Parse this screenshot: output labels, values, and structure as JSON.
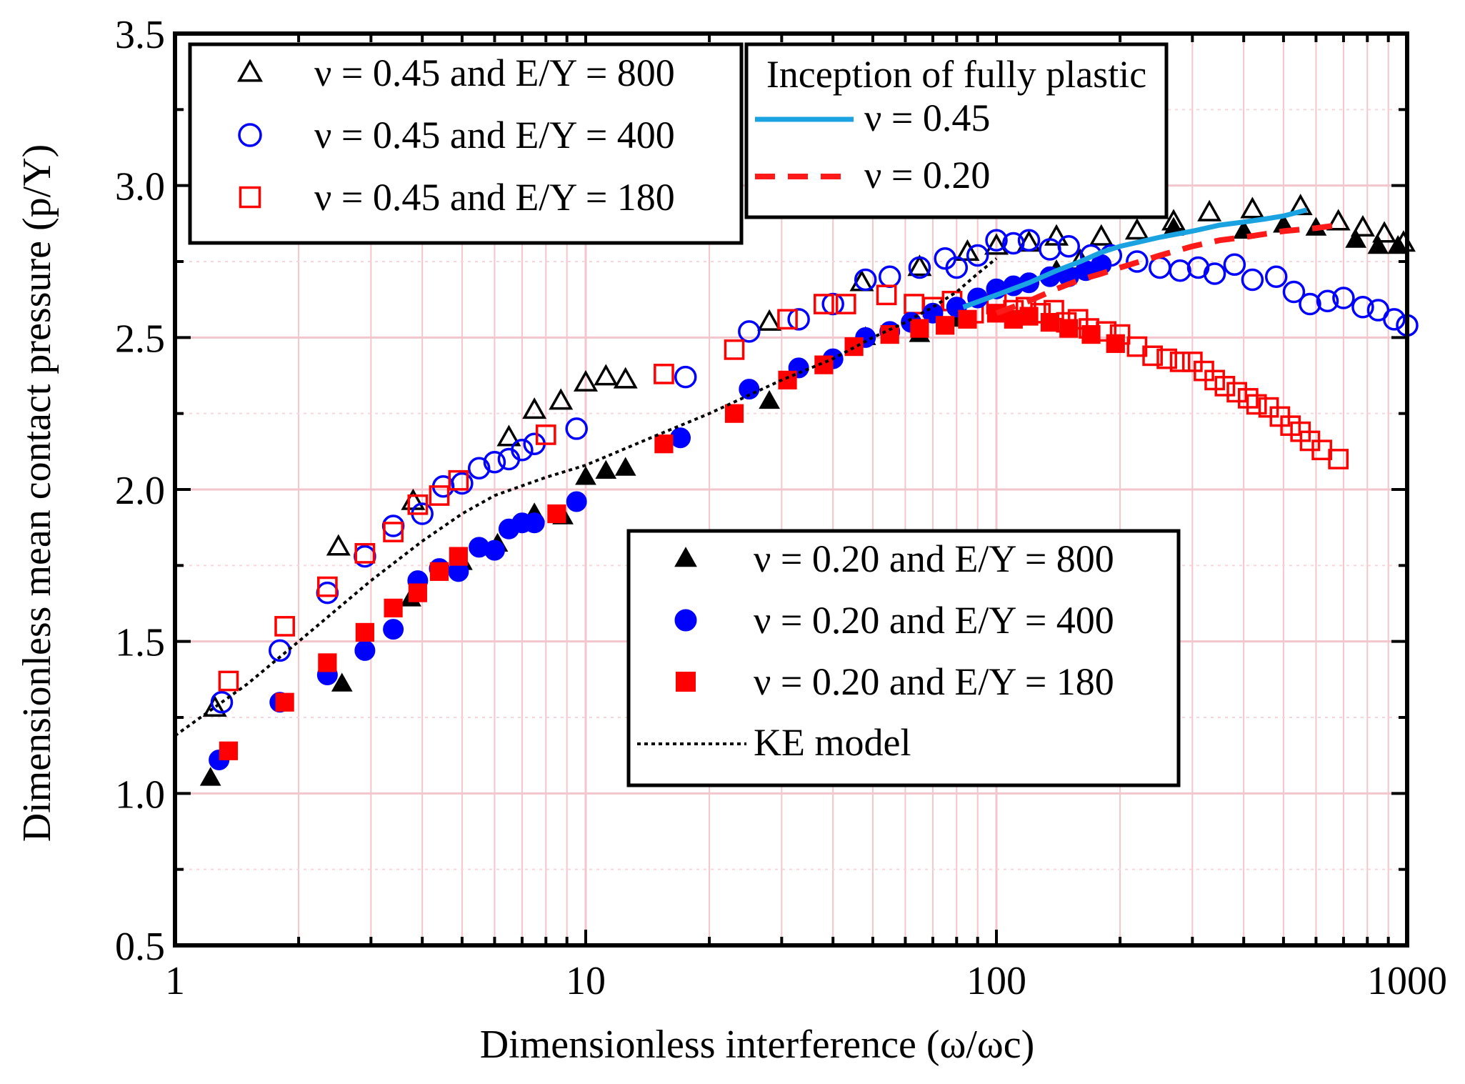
{
  "chart_data": {
    "type": "scatter",
    "xlabel": "Dimensionless interference (ω/ωc)",
    "ylabel": "Dimensionless mean contact pressure (p/Y)",
    "xscale": "log",
    "xlim": [
      1,
      1000
    ],
    "ylim": [
      0.5,
      3.5
    ],
    "xticks": [
      "1",
      "10",
      "100",
      "1000"
    ],
    "yticks": [
      "0.5",
      "1.0",
      "1.5",
      "2.0",
      "2.5",
      "3.0",
      "3.5"
    ],
    "grid": true,
    "series": [
      {
        "name": "ν = 0.45 and E/Y = 800",
        "marker": "triangle-open",
        "color": "#000000",
        "x": [
          1.25,
          2.5,
          3.8,
          6.5,
          7.5,
          8.7,
          10,
          11.2,
          12.5,
          28,
          47,
          65,
          85,
          100,
          120,
          140,
          160,
          180,
          220,
          270,
          330,
          420,
          550,
          680,
          780,
          880,
          980
        ],
        "y": [
          1.28,
          1.81,
          1.96,
          2.17,
          2.26,
          2.29,
          2.35,
          2.37,
          2.36,
          2.55,
          2.68,
          2.73,
          2.78,
          2.8,
          2.81,
          2.83,
          2.75,
          2.83,
          2.85,
          2.88,
          2.91,
          2.92,
          2.93,
          2.88,
          2.86,
          2.84,
          2.81
        ]
      },
      {
        "name": "ν = 0.45 and E/Y = 400",
        "marker": "circle-open",
        "color": "#0000ff",
        "x": [
          1.3,
          1.8,
          2.35,
          2.9,
          3.4,
          4.0,
          4.5,
          5.0,
          5.5,
          6.0,
          6.5,
          7.0,
          7.5,
          9.5,
          17.5,
          25,
          33,
          40,
          48,
          55,
          65,
          75,
          80,
          90,
          100,
          110,
          120,
          135,
          150,
          170,
          190,
          220,
          250,
          280,
          310,
          340,
          380,
          420,
          480,
          530,
          580,
          640,
          700,
          780,
          850,
          930,
          1000
        ],
        "y": [
          1.3,
          1.47,
          1.66,
          1.78,
          1.88,
          1.92,
          2.01,
          2.02,
          2.07,
          2.09,
          2.1,
          2.13,
          2.15,
          2.2,
          2.37,
          2.52,
          2.56,
          2.61,
          2.69,
          2.7,
          2.73,
          2.76,
          2.73,
          2.77,
          2.82,
          2.81,
          2.82,
          2.79,
          2.8,
          2.77,
          2.77,
          2.75,
          2.73,
          2.72,
          2.73,
          2.71,
          2.74,
          2.69,
          2.7,
          2.65,
          2.61,
          2.62,
          2.63,
          2.6,
          2.59,
          2.56,
          2.54
        ]
      },
      {
        "name": "ν = 0.45 and E/Y = 180",
        "marker": "square-open",
        "color": "#ff0000",
        "x": [
          1.35,
          1.85,
          2.35,
          2.9,
          3.4,
          3.9,
          4.4,
          4.9,
          8.0,
          15.5,
          23,
          31,
          38,
          43,
          54,
          63,
          70,
          78,
          88,
          100,
          110,
          118,
          128,
          138,
          148,
          158,
          168,
          185,
          200,
          220,
          240,
          260,
          280,
          300,
          320,
          340,
          360,
          385,
          410,
          430,
          460,
          490,
          520,
          550,
          580,
          620,
          680
        ],
        "y": [
          1.37,
          1.55,
          1.68,
          1.79,
          1.86,
          1.95,
          1.98,
          2.03,
          2.18,
          2.38,
          2.46,
          2.56,
          2.61,
          2.61,
          2.64,
          2.61,
          2.6,
          2.62,
          2.58,
          2.61,
          2.59,
          2.6,
          2.58,
          2.59,
          2.55,
          2.56,
          2.53,
          2.52,
          2.51,
          2.47,
          2.44,
          2.43,
          2.42,
          2.42,
          2.39,
          2.36,
          2.34,
          2.32,
          2.3,
          2.28,
          2.27,
          2.24,
          2.21,
          2.19,
          2.16,
          2.13,
          2.1
        ]
      },
      {
        "name": "ν = 0.20 and E/Y = 800",
        "marker": "triangle-filled",
        "color": "#000000",
        "x": [
          1.22,
          2.55,
          3.75,
          5.0,
          6.1,
          7.5,
          8.8,
          10,
          11.2,
          12.5,
          28,
          48,
          65,
          80,
          140,
          270,
          400,
          500,
          600,
          750,
          850,
          950
        ],
        "y": [
          1.05,
          1.36,
          1.64,
          1.76,
          1.82,
          1.92,
          1.91,
          2.04,
          2.06,
          2.07,
          2.29,
          2.5,
          2.51,
          2.56,
          2.72,
          2.86,
          2.85,
          2.87,
          2.86,
          2.82,
          2.8,
          2.8
        ]
      },
      {
        "name": "ν = 0.20 and E/Y = 400",
        "marker": "circle-filled",
        "color": "#0000ff",
        "x": [
          1.28,
          1.8,
          2.35,
          2.9,
          3.4,
          3.9,
          4.4,
          4.9,
          5.5,
          6.0,
          6.5,
          7.0,
          7.5,
          9.5,
          17,
          25,
          33,
          40,
          48,
          55,
          62,
          70,
          80,
          90,
          100,
          110,
          120,
          135,
          150,
          165,
          180
        ],
        "y": [
          1.11,
          1.3,
          1.39,
          1.47,
          1.54,
          1.7,
          1.74,
          1.73,
          1.81,
          1.8,
          1.87,
          1.89,
          1.89,
          1.96,
          2.17,
          2.33,
          2.4,
          2.43,
          2.5,
          2.52,
          2.55,
          2.58,
          2.6,
          2.63,
          2.66,
          2.67,
          2.68,
          2.7,
          2.7,
          2.72,
          2.74
        ]
      },
      {
        "name": "ν = 0.20 and E/Y = 180",
        "marker": "square-filled",
        "color": "#ff0000",
        "x": [
          1.35,
          1.85,
          2.35,
          2.9,
          3.4,
          3.9,
          4.4,
          4.9,
          8.5,
          15.5,
          23,
          31,
          38,
          45,
          55,
          65,
          75,
          85,
          100,
          110,
          120,
          135,
          150,
          170,
          195
        ],
        "y": [
          1.14,
          1.3,
          1.43,
          1.53,
          1.61,
          1.66,
          1.73,
          1.78,
          1.92,
          2.15,
          2.25,
          2.36,
          2.41,
          2.47,
          2.51,
          2.53,
          2.54,
          2.56,
          2.58,
          2.56,
          2.57,
          2.55,
          2.53,
          2.51,
          2.48
        ]
      },
      {
        "name": "KE model",
        "marker": "dotted-line",
        "color": "#000000",
        "x": [
          1,
          1.5,
          2,
          3,
          4,
          5,
          6,
          8,
          10,
          15,
          20,
          30,
          40,
          50,
          60,
          70,
          80,
          90,
          100
        ],
        "y": [
          1.19,
          1.36,
          1.5,
          1.7,
          1.83,
          1.92,
          1.98,
          2.04,
          2.08,
          2.18,
          2.25,
          2.36,
          2.43,
          2.5,
          2.55,
          2.6,
          2.65,
          2.71,
          2.76
        ]
      },
      {
        "name": "ν = 0.45",
        "marker": "solid-line",
        "color": "#1aa3e0",
        "x": [
          83,
          100,
          120,
          140,
          160,
          180,
          200,
          250,
          300,
          350,
          400,
          450,
          500,
          570
        ],
        "y": [
          2.6,
          2.64,
          2.68,
          2.72,
          2.75,
          2.78,
          2.8,
          2.83,
          2.85,
          2.87,
          2.88,
          2.89,
          2.9,
          2.92
        ]
      },
      {
        "name": "ν = 0.20",
        "marker": "dashed-line",
        "color": "#ff1a1a",
        "x": [
          100,
          120,
          140,
          160,
          180,
          200,
          250,
          300,
          350,
          400,
          500,
          600,
          680
        ],
        "y": [
          2.58,
          2.62,
          2.66,
          2.69,
          2.71,
          2.73,
          2.77,
          2.8,
          2.82,
          2.83,
          2.85,
          2.86,
          2.87
        ]
      }
    ],
    "legends": [
      {
        "position": "top-left",
        "entries": [
          "ν = 0.45 and E/Y = 800",
          "ν = 0.45 and E/Y = 400",
          "ν = 0.45 and E/Y = 180"
        ]
      },
      {
        "position": "top-center",
        "title": "Inception of fully plastic",
        "entries": [
          "ν = 0.45",
          "ν = 0.20"
        ]
      },
      {
        "position": "center-right",
        "entries": [
          "ν = 0.20 and E/Y = 800",
          "ν = 0.20 and E/Y = 400",
          "ν = 0.20 and E/Y = 180",
          "KE model"
        ]
      }
    ]
  }
}
